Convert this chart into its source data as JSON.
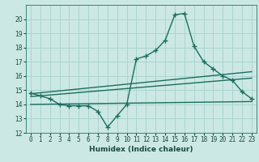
{
  "xlabel": "Humidex (Indice chaleur)",
  "background_color": "#cce8e4",
  "grid_color": "#aad4ce",
  "line_color": "#1a6e5e",
  "xlim": [
    -0.5,
    23.5
  ],
  "ylim": [
    12,
    21
  ],
  "yticks": [
    12,
    13,
    14,
    15,
    16,
    17,
    18,
    19,
    20
  ],
  "xticks": [
    0,
    1,
    2,
    3,
    4,
    5,
    6,
    7,
    8,
    9,
    10,
    11,
    12,
    13,
    14,
    15,
    16,
    17,
    18,
    19,
    20,
    21,
    22,
    23
  ],
  "main_line_x": [
    0,
    1,
    2,
    3,
    4,
    5,
    6,
    7,
    8,
    9,
    10,
    11,
    12,
    13,
    14,
    15,
    16,
    17,
    18,
    19,
    20,
    21,
    22,
    23
  ],
  "main_line_y": [
    14.8,
    14.6,
    14.4,
    14.0,
    13.9,
    13.9,
    13.9,
    13.5,
    12.4,
    13.2,
    14.0,
    17.2,
    17.4,
    17.8,
    18.5,
    20.3,
    20.4,
    18.1,
    17.0,
    16.5,
    16.0,
    15.7,
    14.9,
    14.4
  ],
  "trend_line1_x": [
    0,
    23
  ],
  "trend_line1_y": [
    14.75,
    16.3
  ],
  "trend_line2_x": [
    0,
    23
  ],
  "trend_line2_y": [
    14.55,
    15.85
  ],
  "flat_line_x": [
    0,
    23
  ],
  "flat_line_y": [
    14.0,
    14.2
  ],
  "xlabel_fontsize": 6.5,
  "tick_fontsize": 5.5,
  "linewidth": 1.0,
  "marker_size": 4
}
